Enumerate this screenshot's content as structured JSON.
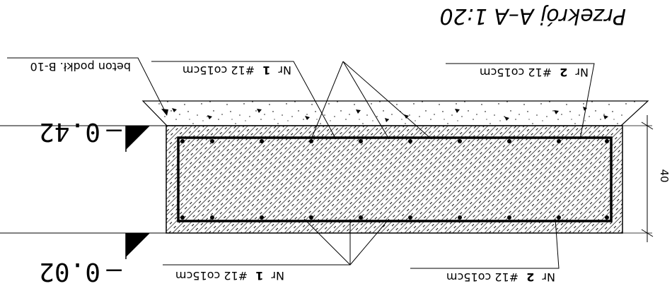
{
  "drawing": {
    "title": "Przekrój A–A 1:20",
    "concrete_label": "beton podkł. B-10",
    "level_top": "0.42",
    "level_bottom": "0.02",
    "level_top_sign": "–",
    "level_bottom_sign": "–",
    "dimension_height": "40",
    "labels": {
      "top_left": {
        "prefix": "Nr",
        "num": "1",
        "spec": "#12 co15cm"
      },
      "top_right": {
        "prefix": "Nr",
        "num": "2",
        "spec": "#12 co15cm"
      },
      "bottom_left": {
        "prefix": "Nr",
        "num": "1",
        "spec": "#12 co15cm"
      },
      "bottom_right": {
        "prefix": "Nr",
        "num": "2",
        "spec": "#12 co15cm"
      }
    }
  }
}
